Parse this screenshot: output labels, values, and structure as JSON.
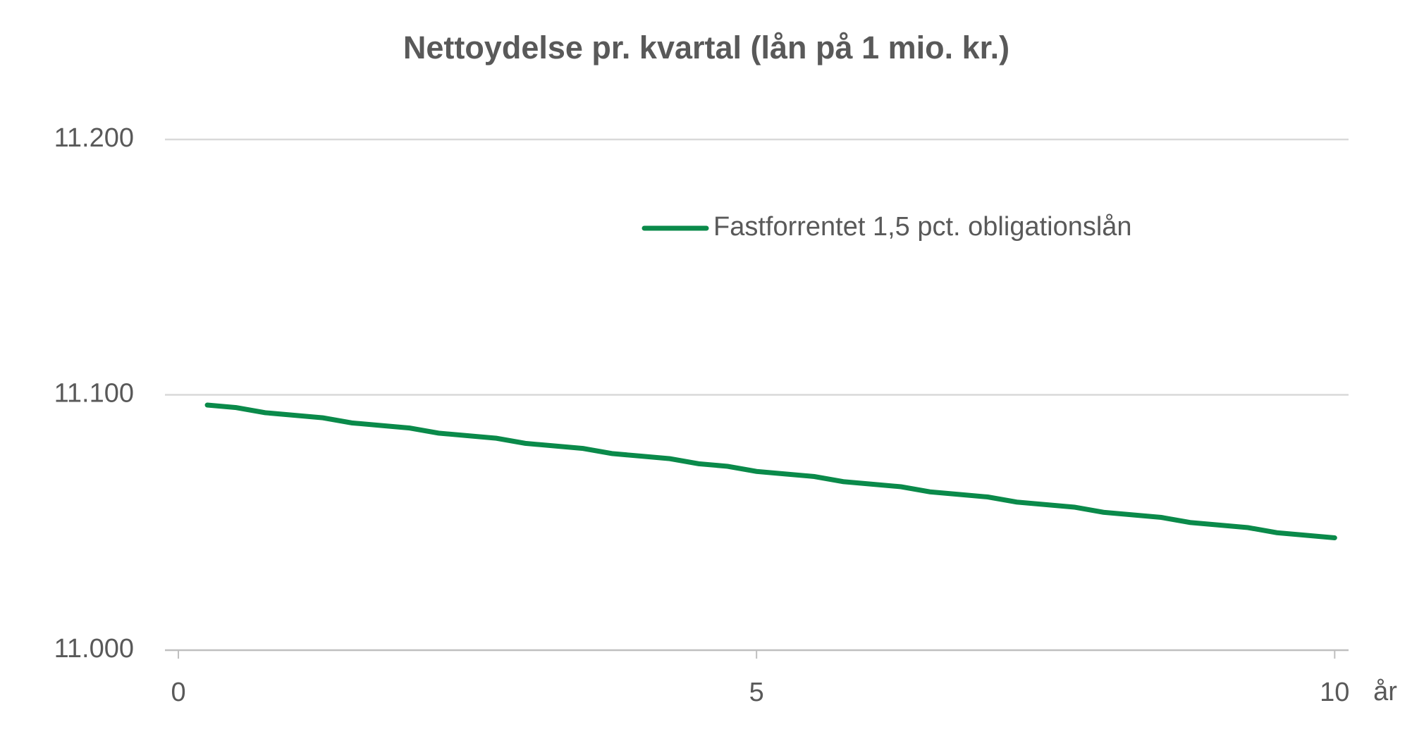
{
  "chart_data": {
    "type": "line",
    "title": "Nettoydelse pr. kvartal (lån på 1 mio. kr.)",
    "x_label": "år",
    "x": [
      0.25,
      0.5,
      0.75,
      1,
      1.25,
      1.5,
      1.75,
      2,
      2.25,
      2.5,
      2.75,
      3,
      3.25,
      3.5,
      3.75,
      4,
      4.25,
      4.5,
      4.75,
      5,
      5.25,
      5.5,
      5.75,
      6,
      6.25,
      6.5,
      6.75,
      7,
      7.25,
      7.5,
      7.75,
      8,
      8.25,
      8.5,
      8.75,
      9,
      9.25,
      9.5,
      9.75,
      10
    ],
    "series": [
      {
        "name": "Fastforrentet 1,5 pct. obligationslån",
        "color": "#0a8a4a",
        "values": [
          11096,
          11095,
          11093,
          11092,
          11091,
          11089,
          11088,
          11087,
          11085,
          11084,
          11083,
          11081,
          11080,
          11079,
          11077,
          11076,
          11075,
          11073,
          11072,
          11070,
          11069,
          11068,
          11066,
          11065,
          11064,
          11062,
          11061,
          11060,
          11058,
          11057,
          11056,
          11054,
          11053,
          11052,
          11050,
          11049,
          11048,
          11046,
          11045,
          11044
        ]
      }
    ],
    "xlim": [
      -0.116,
      10.12
    ],
    "xticks": [
      0,
      5,
      10
    ],
    "ylim": [
      11000,
      11200
    ],
    "yticks": [
      {
        "value": 11000,
        "label": "11.000"
      },
      {
        "value": 11100,
        "label": "11.100"
      },
      {
        "value": 11200,
        "label": "11.200"
      }
    ],
    "grid": true
  }
}
